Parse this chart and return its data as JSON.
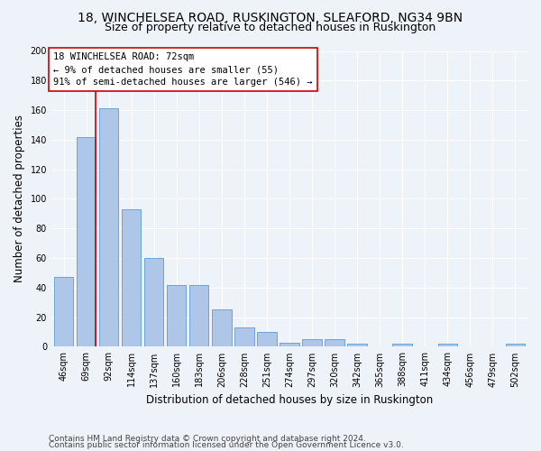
{
  "title": "18, WINCHELSEA ROAD, RUSKINGTON, SLEAFORD, NG34 9BN",
  "subtitle": "Size of property relative to detached houses in Ruskington",
  "xlabel": "Distribution of detached houses by size in Ruskington",
  "ylabel": "Number of detached properties",
  "categories": [
    "46sqm",
    "69sqm",
    "92sqm",
    "114sqm",
    "137sqm",
    "160sqm",
    "183sqm",
    "206sqm",
    "228sqm",
    "251sqm",
    "274sqm",
    "297sqm",
    "320sqm",
    "342sqm",
    "365sqm",
    "388sqm",
    "411sqm",
    "434sqm",
    "456sqm",
    "479sqm",
    "502sqm"
  ],
  "values": [
    47,
    142,
    161,
    93,
    60,
    42,
    42,
    25,
    13,
    10,
    3,
    5,
    5,
    2,
    0,
    2,
    0,
    2,
    0,
    0,
    2
  ],
  "bar_color": "#aec6e8",
  "bar_edge_color": "#5b9bd5",
  "highlight_line_color": "#cc0000",
  "annotation_text": "18 WINCHELSEA ROAD: 72sqm\n← 9% of detached houses are smaller (55)\n91% of semi-detached houses are larger (546) →",
  "annotation_box_color": "#ffffff",
  "annotation_box_edge_color": "#cc0000",
  "ylim": [
    0,
    200
  ],
  "yticks": [
    0,
    20,
    40,
    60,
    80,
    100,
    120,
    140,
    160,
    180,
    200
  ],
  "footer1": "Contains HM Land Registry data © Crown copyright and database right 2024.",
  "footer2": "Contains public sector information licensed under the Open Government Licence v3.0.",
  "background_color": "#eef2f9",
  "plot_background_color": "#eef2f9",
  "title_fontsize": 10,
  "subtitle_fontsize": 9,
  "axis_label_fontsize": 8.5,
  "tick_fontsize": 7,
  "annotation_fontsize": 7.5,
  "footer_fontsize": 6.5
}
